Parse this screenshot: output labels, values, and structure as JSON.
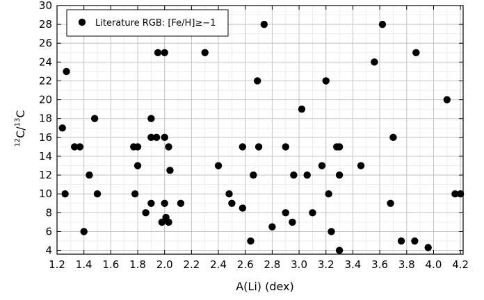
{
  "chart_data": {
    "type": "scatter",
    "xlabel": "A(Li) (dex)",
    "ylabel": {
      "sup1": "12",
      "part1": "C/",
      "sup2": "13",
      "part2": "C"
    },
    "xlim": [
      1.2,
      4.22
    ],
    "ylim": [
      3.6,
      30
    ],
    "x_ticks": [
      1.2,
      1.4,
      1.6,
      1.8,
      2.0,
      2.2,
      2.4,
      2.6,
      2.8,
      3.0,
      3.2,
      3.4,
      3.6,
      3.8,
      4.0,
      4.2
    ],
    "x_tick_labels": [
      "1.2",
      "1.4",
      "1.6",
      "1.8",
      "2.0",
      "2.2",
      "2.4",
      "2.6",
      "2.8",
      "3.0",
      "3.2",
      "3.4",
      "3.6",
      "3.8",
      "4.0",
      "4.2"
    ],
    "y_ticks": [
      4,
      6,
      8,
      10,
      12,
      14,
      16,
      18,
      20,
      22,
      24,
      26,
      28,
      30
    ],
    "y_tick_labels": [
      "4",
      "6",
      "8",
      "10",
      "12",
      "14",
      "16",
      "18",
      "20",
      "22",
      "24",
      "26",
      "28",
      "30"
    ],
    "grid": true,
    "legend_position": "top-left",
    "series": [
      {
        "name": "Literature RGB: [Fe/H]≥−1",
        "color": "#000000",
        "marker": "circle",
        "points": [
          {
            "x": 1.24,
            "y": 17
          },
          {
            "x": 1.26,
            "y": 10
          },
          {
            "x": 1.27,
            "y": 23
          },
          {
            "x": 1.33,
            "y": 15
          },
          {
            "x": 1.37,
            "y": 15
          },
          {
            "x": 1.4,
            "y": 6
          },
          {
            "x": 1.44,
            "y": 12
          },
          {
            "x": 1.48,
            "y": 18
          },
          {
            "x": 1.5,
            "y": 10
          },
          {
            "x": 1.77,
            "y": 15
          },
          {
            "x": 1.78,
            "y": 10
          },
          {
            "x": 1.8,
            "y": 13
          },
          {
            "x": 1.8,
            "y": 15
          },
          {
            "x": 1.86,
            "y": 8
          },
          {
            "x": 1.9,
            "y": 9
          },
          {
            "x": 1.9,
            "y": 16
          },
          {
            "x": 1.9,
            "y": 18
          },
          {
            "x": 1.94,
            "y": 16
          },
          {
            "x": 1.95,
            "y": 25
          },
          {
            "x": 1.98,
            "y": 7
          },
          {
            "x": 2.0,
            "y": 16
          },
          {
            "x": 2.0,
            "y": 9
          },
          {
            "x": 2.0,
            "y": 25
          },
          {
            "x": 2.01,
            "y": 7.5
          },
          {
            "x": 2.03,
            "y": 7
          },
          {
            "x": 2.03,
            "y": 15
          },
          {
            "x": 2.04,
            "y": 12.5
          },
          {
            "x": 2.12,
            "y": 9
          },
          {
            "x": 2.3,
            "y": 25
          },
          {
            "x": 2.4,
            "y": 13
          },
          {
            "x": 2.48,
            "y": 10
          },
          {
            "x": 2.5,
            "y": 9
          },
          {
            "x": 2.58,
            "y": 8.5
          },
          {
            "x": 2.58,
            "y": 15
          },
          {
            "x": 2.64,
            "y": 5
          },
          {
            "x": 2.66,
            "y": 12
          },
          {
            "x": 2.69,
            "y": 22
          },
          {
            "x": 2.7,
            "y": 15
          },
          {
            "x": 2.74,
            "y": 28
          },
          {
            "x": 2.8,
            "y": 6.5
          },
          {
            "x": 2.9,
            "y": 8
          },
          {
            "x": 2.9,
            "y": 15
          },
          {
            "x": 2.95,
            "y": 7
          },
          {
            "x": 2.96,
            "y": 12
          },
          {
            "x": 3.02,
            "y": 19
          },
          {
            "x": 3.06,
            "y": 12
          },
          {
            "x": 3.1,
            "y": 8
          },
          {
            "x": 3.17,
            "y": 13
          },
          {
            "x": 3.2,
            "y": 22
          },
          {
            "x": 3.22,
            "y": 10
          },
          {
            "x": 3.24,
            "y": 6
          },
          {
            "x": 3.28,
            "y": 15
          },
          {
            "x": 3.3,
            "y": 15
          },
          {
            "x": 3.3,
            "y": 12
          },
          {
            "x": 3.3,
            "y": 4
          },
          {
            "x": 3.46,
            "y": 13
          },
          {
            "x": 3.56,
            "y": 24
          },
          {
            "x": 3.62,
            "y": 28
          },
          {
            "x": 3.68,
            "y": 9
          },
          {
            "x": 3.7,
            "y": 16
          },
          {
            "x": 3.76,
            "y": 5
          },
          {
            "x": 3.86,
            "y": 5
          },
          {
            "x": 3.87,
            "y": 25
          },
          {
            "x": 3.96,
            "y": 4.3
          },
          {
            "x": 4.1,
            "y": 20
          },
          {
            "x": 4.16,
            "y": 10
          },
          {
            "x": 4.2,
            "y": 10
          }
        ]
      }
    ]
  }
}
